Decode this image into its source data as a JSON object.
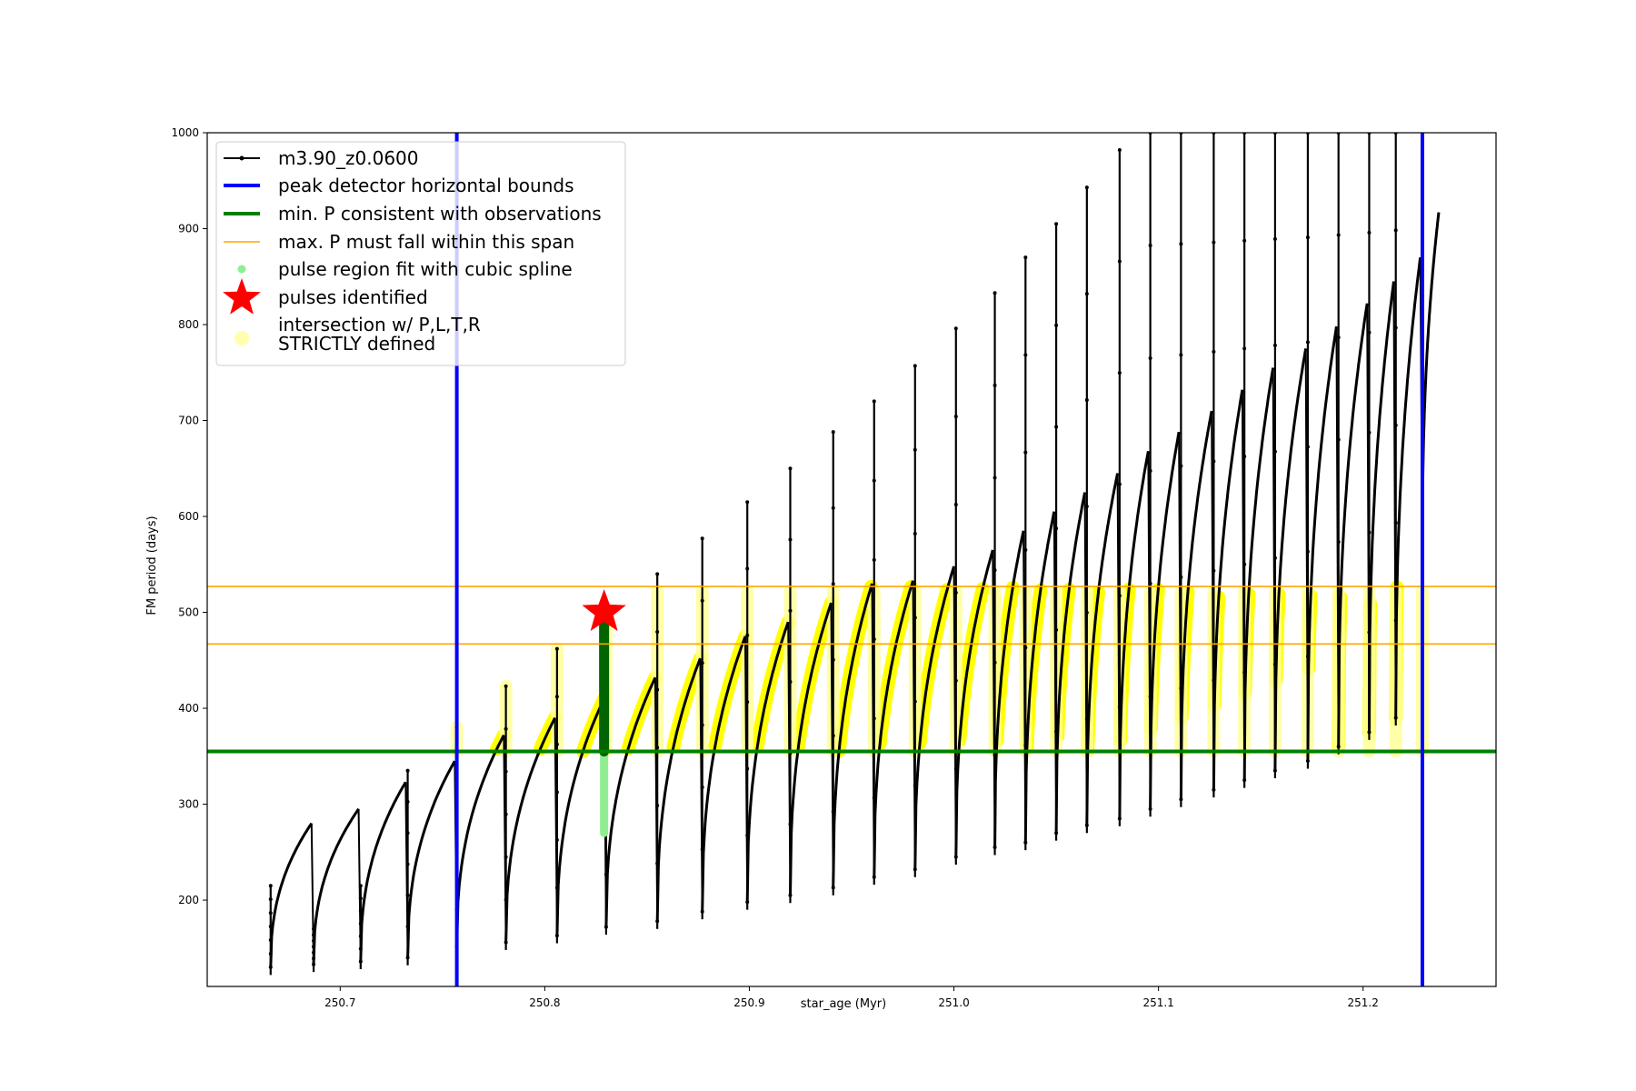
{
  "chart_data": {
    "type": "line",
    "xlabel": "star_age (Myr)",
    "ylabel": "FM period (days)",
    "xlim": [
      250.635,
      251.265
    ],
    "ylim": [
      110,
      1000
    ],
    "xticks": [
      250.7,
      250.8,
      250.9,
      251.0,
      251.1,
      251.2
    ],
    "xtick_labels": [
      "250.7",
      "250.8",
      "250.9",
      "251.0",
      "251.1",
      "251.2"
    ],
    "yticks": [
      200,
      300,
      400,
      500,
      600,
      700,
      800,
      900,
      1000
    ],
    "ytick_labels": [
      "200",
      "300",
      "400",
      "500",
      "600",
      "700",
      "800",
      "900",
      "1000"
    ],
    "grid": false,
    "legend_position": "top-left",
    "legend": [
      {
        "label": "m3.90_z0.0600",
        "style": "line-marker",
        "color": "#000000"
      },
      {
        "label": "peak detector horizontal bounds",
        "style": "line",
        "color": "#0000ff"
      },
      {
        "label": "min. P consistent with observations",
        "style": "line",
        "color": "#008000"
      },
      {
        "label": "max. P must fall within this span",
        "style": "thin-line",
        "color": "#ffa500"
      },
      {
        "label": "pulse region fit with cubic spline",
        "style": "dot",
        "color": "#90ee90"
      },
      {
        "label": "pulses identified",
        "style": "star",
        "color": "#ff0000"
      },
      {
        "label": "intersection w/ P,L,T,R",
        "label2": "STRICTLY defined",
        "style": "halo",
        "color": "#ffff99"
      }
    ],
    "colors": {
      "track": "#000000",
      "bounds": "#0000ff",
      "min_p": "#008000",
      "max_p": "#ffa500",
      "spline": "#90ee90",
      "identified": "#006400",
      "star": "#ff0000",
      "intersection": "#ffff00",
      "halo": "#ffff99"
    },
    "vertical_bounds_x": [
      250.757,
      251.229
    ],
    "min_p_y": 355,
    "max_p_span": [
      467,
      527
    ],
    "pulse_cycles": [
      {
        "start": 250.666,
        "end": 250.686,
        "p_start": 130,
        "p_peak": 280,
        "spike": 215
      },
      {
        "start": 250.687,
        "end": 250.709,
        "p_start": 133,
        "p_peak": 295,
        "spike": 170
      },
      {
        "start": 250.71,
        "end": 250.732,
        "p_start": 136,
        "p_peak": 323,
        "spike": 215
      },
      {
        "start": 250.733,
        "end": 250.756,
        "p_start": 140,
        "p_peak": 345,
        "spike": 335
      },
      {
        "start": 250.757,
        "end": 250.78,
        "p_start": 152,
        "p_peak": 372,
        "spike": 380
      },
      {
        "start": 250.781,
        "end": 250.805,
        "p_start": 156,
        "p_peak": 390,
        "spike": 423
      },
      {
        "start": 250.806,
        "end": 250.829,
        "p_start": 163,
        "p_peak": 410,
        "spike": 462
      },
      {
        "start": 250.83,
        "end": 250.854,
        "p_start": 172,
        "p_peak": 432,
        "spike": 500
      },
      {
        "start": 250.855,
        "end": 250.876,
        "p_start": 178,
        "p_peak": 452,
        "spike": 540
      },
      {
        "start": 250.877,
        "end": 250.898,
        "p_start": 188,
        "p_peak": 475,
        "spike": 577
      },
      {
        "start": 250.899,
        "end": 250.919,
        "p_start": 198,
        "p_peak": 490,
        "spike": 615
      },
      {
        "start": 250.92,
        "end": 250.94,
        "p_start": 205,
        "p_peak": 510,
        "spike": 650
      },
      {
        "start": 250.941,
        "end": 250.96,
        "p_start": 213,
        "p_peak": 530,
        "spike": 688
      },
      {
        "start": 250.961,
        "end": 250.98,
        "p_start": 224,
        "p_peak": 533,
        "spike": 720
      },
      {
        "start": 250.981,
        "end": 251.0,
        "p_start": 232,
        "p_peak": 548,
        "spike": 757
      },
      {
        "start": 251.001,
        "end": 251.019,
        "p_start": 245,
        "p_peak": 565,
        "spike": 796
      },
      {
        "start": 251.02,
        "end": 251.034,
        "p_start": 255,
        "p_peak": 585,
        "spike": 833
      },
      {
        "start": 251.035,
        "end": 251.049,
        "p_start": 260,
        "p_peak": 605,
        "spike": 870
      },
      {
        "start": 251.05,
        "end": 251.064,
        "p_start": 270,
        "p_peak": 625,
        "spike": 905
      },
      {
        "start": 251.065,
        "end": 251.08,
        "p_start": 278,
        "p_peak": 645,
        "spike": 943
      },
      {
        "start": 251.081,
        "end": 251.095,
        "p_start": 285,
        "p_peak": 668,
        "spike": 982
      },
      {
        "start": 251.096,
        "end": 251.11,
        "p_start": 295,
        "p_peak": 688,
        "spike": 1000
      },
      {
        "start": 251.111,
        "end": 251.126,
        "p_start": 305,
        "p_peak": 710,
        "spike": 1000
      },
      {
        "start": 251.127,
        "end": 251.141,
        "p_start": 315,
        "p_peak": 732,
        "spike": 1000
      },
      {
        "start": 251.142,
        "end": 251.156,
        "p_start": 325,
        "p_peak": 755,
        "spike": 1000
      },
      {
        "start": 251.157,
        "end": 251.172,
        "p_start": 335,
        "p_peak": 775,
        "spike": 1000
      },
      {
        "start": 251.173,
        "end": 251.187,
        "p_start": 345,
        "p_peak": 798,
        "spike": 1000
      },
      {
        "start": 251.188,
        "end": 251.202,
        "p_start": 360,
        "p_peak": 822,
        "spike": 1000
      },
      {
        "start": 251.203,
        "end": 251.215,
        "p_start": 375,
        "p_peak": 845,
        "spike": 1000
      },
      {
        "start": 251.216,
        "end": 251.228,
        "p_start": 390,
        "p_peak": 870,
        "spike": 1000
      },
      {
        "start": 251.229,
        "end": 251.237,
        "p_start": 560,
        "p_peak": 917,
        "spike": 1000
      }
    ],
    "star_point": {
      "x": 250.829,
      "y": 500
    },
    "identified_segment": {
      "x": 250.829,
      "y_range": [
        355,
        500
      ]
    },
    "spline_segment": {
      "x": 250.829,
      "y_range": [
        270,
        355
      ]
    }
  }
}
